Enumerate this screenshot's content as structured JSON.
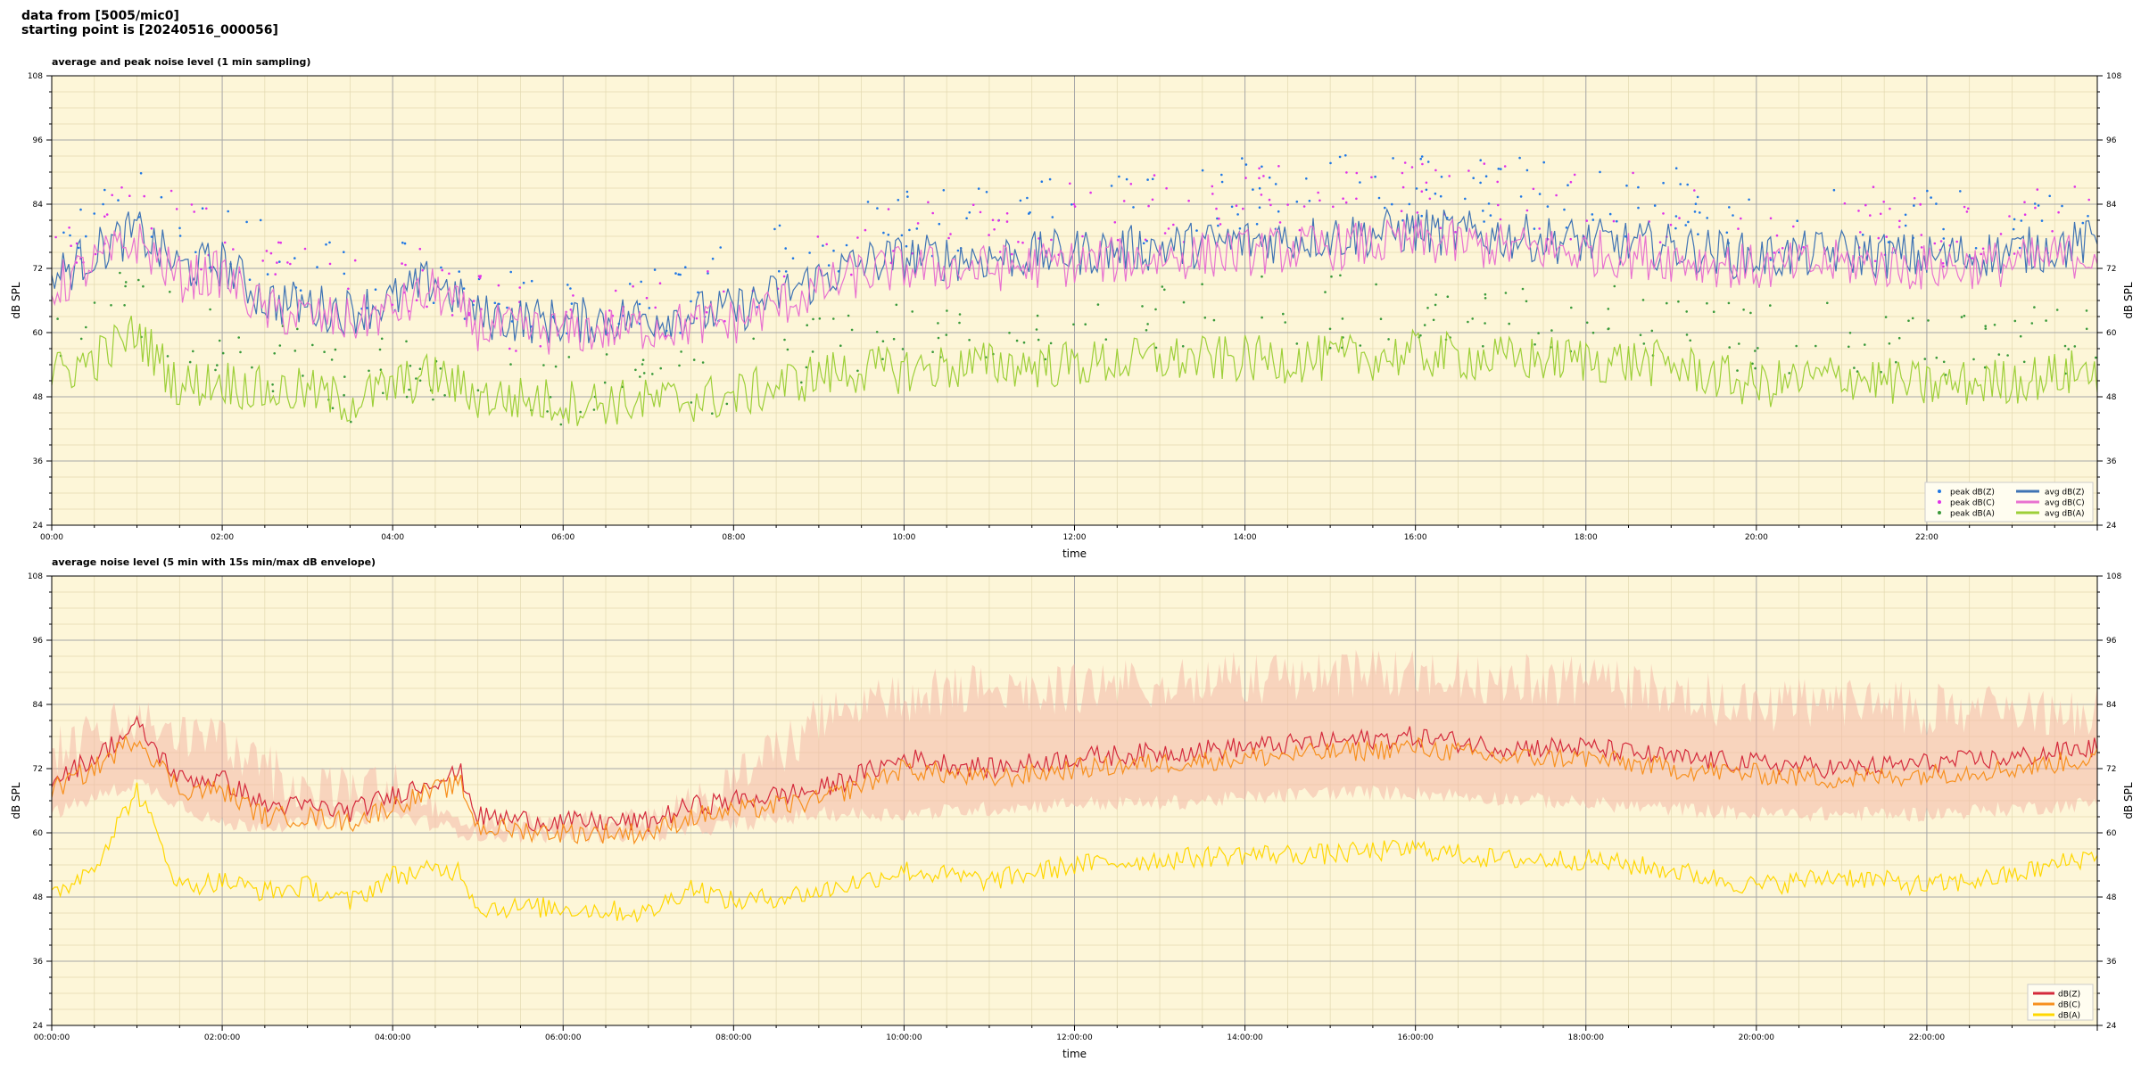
{
  "figure": {
    "line1": "data from [5005/mic0]",
    "line2": "starting point is [20240516_000056]"
  },
  "chart_data": [
    {
      "type": "line",
      "title": "average and peak noise level (1 min sampling)",
      "xlabel": "time",
      "ylabel": "dB SPL",
      "xlim": [
        0,
        24
      ],
      "ylim": [
        24,
        108
      ],
      "yticks": [
        24,
        36,
        48,
        60,
        72,
        84,
        96,
        108
      ],
      "xtick_labels": [
        "00:00",
        "02:00",
        "04:00",
        "06:00",
        "08:00",
        "10:00",
        "12:00",
        "14:00",
        "16:00",
        "18:00",
        "20:00",
        "22:00"
      ],
      "grid": true,
      "background": "#fdf6d8",
      "legend_position": "lower-right",
      "legend_columns": 2,
      "series": [
        {
          "name": "peak dB(Z)",
          "kind": "scatter",
          "color": "#1f77e4",
          "x": [
            0,
            1,
            1.5,
            2,
            2.5,
            3,
            3.5,
            4,
            4.5,
            5,
            6,
            7,
            8,
            9,
            10,
            11,
            12,
            13,
            14,
            15,
            16,
            17,
            18,
            19,
            20,
            21,
            22,
            23,
            24
          ],
          "values": [
            80,
            83,
            82,
            77,
            74,
            73,
            70,
            71,
            72,
            66,
            65,
            65,
            70,
            76,
            80,
            83,
            82,
            84,
            86,
            86,
            87,
            86,
            85,
            84,
            80,
            82,
            80,
            81,
            82
          ]
        },
        {
          "name": "peak dB(C)",
          "kind": "scatter",
          "color": "#e032e8",
          "x": [
            0,
            1,
            1.5,
            2,
            2.5,
            3,
            3.5,
            4,
            4.5,
            5,
            6,
            7,
            8,
            9,
            10,
            11,
            12,
            13,
            14,
            15,
            16,
            17,
            18,
            19,
            20,
            21,
            22,
            23,
            24
          ],
          "values": [
            78,
            82,
            81,
            76,
            73,
            72,
            69,
            70,
            71,
            64,
            63,
            63,
            68,
            74,
            78,
            81,
            81,
            83,
            85,
            85,
            86,
            85,
            84,
            83,
            79,
            81,
            79,
            80,
            81
          ]
        },
        {
          "name": "peak dB(A)",
          "kind": "scatter",
          "color": "#3a9a3a",
          "x": [
            0,
            1,
            1.5,
            2,
            2.5,
            3,
            3.5,
            4,
            4.5,
            5,
            6,
            7,
            8,
            9,
            10,
            11,
            12,
            13,
            14,
            15,
            16,
            17,
            18,
            19,
            20,
            21,
            22,
            23,
            24
          ],
          "values": [
            62,
            66,
            60,
            58,
            56,
            56,
            50,
            55,
            54,
            50,
            49,
            49,
            52,
            57,
            60,
            62,
            62,
            63,
            64,
            64,
            65,
            64,
            63,
            62,
            58,
            60,
            58,
            58,
            60
          ]
        },
        {
          "name": "avg dB(Z)",
          "kind": "line",
          "color": "#3f73b4",
          "x": [
            0,
            0.5,
            1,
            1.5,
            2,
            2.5,
            3,
            3.5,
            4,
            4.5,
            5,
            6,
            7,
            8,
            8.5,
            9,
            9.5,
            10,
            11,
            12,
            13,
            14,
            15,
            16,
            17,
            18,
            19,
            20,
            21,
            22,
            23,
            24
          ],
          "values": [
            70,
            75,
            79,
            72,
            73,
            66,
            65,
            64,
            66,
            70,
            63,
            62,
            63,
            64,
            67,
            70,
            73,
            74,
            74,
            75,
            76,
            77,
            78,
            79,
            78,
            77,
            76,
            74,
            75,
            74,
            75,
            77
          ]
        },
        {
          "name": "avg dB(C)",
          "kind": "line",
          "color": "#e872d0",
          "x": [
            0,
            0.5,
            1,
            1.5,
            2,
            2.5,
            3,
            3.5,
            4,
            4.5,
            5,
            6,
            7,
            8,
            8.5,
            9,
            9.5,
            10,
            11,
            12,
            13,
            14,
            15,
            16,
            17,
            18,
            19,
            20,
            21,
            22,
            23,
            24
          ],
          "values": [
            68,
            73,
            77,
            70,
            71,
            64,
            63,
            62,
            64,
            68,
            61,
            60,
            61,
            62,
            65,
            68,
            71,
            72,
            72,
            73,
            74,
            75,
            76,
            77,
            76,
            75,
            74,
            72,
            73,
            72,
            73,
            75
          ]
        },
        {
          "name": "avg dB(A)",
          "kind": "line",
          "color": "#9dcf38",
          "x": [
            0,
            0.5,
            1,
            1.5,
            2,
            2.5,
            3,
            3.5,
            4,
            4.5,
            5,
            6,
            7,
            8,
            8.5,
            9,
            9.5,
            10,
            11,
            12,
            13,
            14,
            15,
            16,
            17,
            18,
            19,
            20,
            21,
            22,
            23,
            24
          ],
          "values": [
            52,
            55,
            60,
            50,
            51,
            49,
            49,
            47,
            50,
            52,
            48,
            47,
            47,
            48,
            50,
            52,
            53,
            53,
            54,
            54,
            55,
            55,
            55,
            56,
            55,
            55,
            54,
            50,
            52,
            50,
            51,
            53
          ]
        }
      ]
    },
    {
      "type": "line",
      "title": "average noise level (5 min with 15s min/max dB envelope)",
      "xlabel": "time",
      "ylabel": "dB SPL",
      "xlim": [
        0,
        24
      ],
      "ylim": [
        24,
        108
      ],
      "yticks": [
        24,
        36,
        48,
        60,
        72,
        84,
        96,
        108
      ],
      "xtick_labels": [
        "00:00:00",
        "02:00:00",
        "04:00:00",
        "06:00:00",
        "08:00:00",
        "10:00:00",
        "12:00:00",
        "14:00:00",
        "16:00:00",
        "18:00:00",
        "20:00:00",
        "22:00:00"
      ],
      "grid": true,
      "background": "#fdf6d8",
      "legend_position": "lower-right",
      "envelope": {
        "color": "#f4b8a8",
        "x": [
          0,
          1,
          2,
          3,
          4,
          5,
          6,
          7,
          8,
          9,
          10,
          11,
          12,
          13,
          14,
          15,
          16,
          17,
          18,
          19,
          20,
          21,
          22,
          23,
          24
        ],
        "min": [
          62,
          68,
          60,
          60,
          62,
          58,
          58,
          58,
          60,
          62,
          62,
          63,
          64,
          64,
          65,
          66,
          66,
          65,
          64,
          63,
          62,
          62,
          62,
          63,
          64
        ],
        "max": [
          80,
          86,
          82,
          72,
          74,
          64,
          64,
          66,
          74,
          86,
          90,
          92,
          92,
          93,
          94,
          94,
          95,
          94,
          93,
          92,
          88,
          90,
          88,
          88,
          88
        ]
      },
      "series": [
        {
          "name": "dB(Z)",
          "color": "#d42a3c",
          "x": [
            0,
            0.5,
            1,
            1.5,
            2,
            2.5,
            3,
            3.5,
            4,
            4.5,
            4.8,
            5,
            6,
            7,
            7.5,
            8,
            9,
            10,
            11,
            12,
            13,
            14,
            15,
            16,
            17,
            18,
            19,
            20,
            21,
            22,
            23,
            24
          ],
          "values": [
            70,
            74,
            80,
            70,
            70,
            65,
            65,
            64,
            67,
            70,
            71,
            63,
            62,
            62,
            65,
            66,
            68,
            74,
            72,
            74,
            75,
            76,
            77,
            78,
            76,
            76,
            74,
            73,
            72,
            73,
            74,
            76
          ]
        },
        {
          "name": "dB(C)",
          "color": "#f7901e",
          "x": [
            0,
            0.5,
            1,
            1.5,
            2,
            2.5,
            3,
            3.5,
            4,
            4.5,
            4.8,
            5,
            6,
            7,
            7.5,
            8,
            9,
            10,
            11,
            12,
            13,
            14,
            15,
            16,
            17,
            18,
            19,
            20,
            21,
            22,
            23,
            24
          ],
          "values": [
            68,
            72,
            78,
            68,
            68,
            63,
            63,
            62,
            65,
            68,
            69,
            61,
            60,
            60,
            63,
            64,
            66,
            72,
            70,
            72,
            73,
            74,
            75,
            76,
            74,
            74,
            72,
            71,
            70,
            71,
            72,
            74
          ]
        },
        {
          "name": "dB(A)",
          "color": "#ffd700",
          "x": [
            0,
            0.5,
            1,
            1.5,
            2,
            2.5,
            3,
            3.5,
            4,
            4.5,
            4.8,
            5,
            6,
            7,
            7.5,
            8,
            9,
            10,
            11,
            12,
            13,
            14,
            15,
            16,
            17,
            18,
            19,
            20,
            21,
            22,
            23,
            24
          ],
          "values": [
            48,
            54,
            68,
            50,
            51,
            49,
            50,
            47,
            52,
            53,
            53,
            46,
            46,
            45,
            50,
            47,
            49,
            53,
            51,
            54,
            55,
            56,
            56,
            57,
            55,
            55,
            53,
            50,
            52,
            50,
            52,
            56
          ]
        }
      ]
    }
  ]
}
